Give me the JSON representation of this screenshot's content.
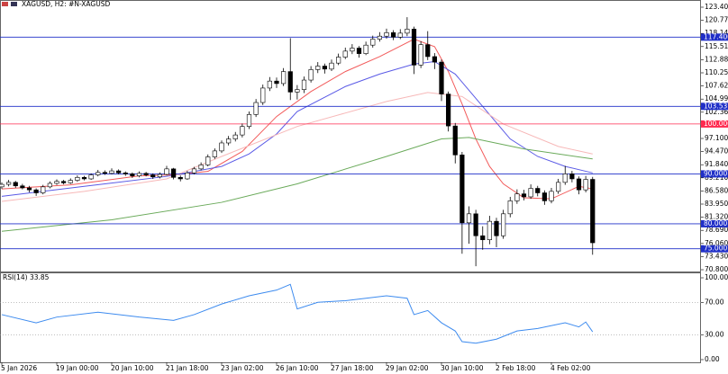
{
  "header": {
    "title": "XAGUSD, H2:  #N-XAGUSD"
  },
  "chart_data": [
    {
      "type": "candlestick",
      "categories": [
        "5 Jan 2026",
        null,
        null,
        null,
        null,
        null,
        null,
        null,
        "19 Jan 00:00",
        null,
        null,
        null,
        null,
        null,
        null,
        null,
        "20 Jan 10:00",
        null,
        null,
        null,
        null,
        null,
        null,
        null,
        "21 Jan 18:00",
        null,
        null,
        null,
        null,
        null,
        null,
        null,
        "23 Jan 02:00",
        null,
        null,
        null,
        null,
        null,
        null,
        null,
        "26 Jan 10:00",
        null,
        null,
        null,
        null,
        null,
        null,
        null,
        "27 Jan 18:00",
        null,
        null,
        null,
        null,
        null,
        null,
        null,
        "29 Jan 02:00",
        null,
        null,
        null,
        null,
        null,
        null,
        null,
        "30 Jan 10:00",
        null,
        null,
        null,
        null,
        null,
        null,
        null,
        "2 Feb 18:00",
        null,
        null,
        null,
        null,
        null,
        null,
        null,
        "4 Feb 02:00",
        null,
        null,
        null,
        null,
        null,
        null
      ],
      "open": [
        87.4,
        87.9,
        88.3,
        87.6,
        87.2,
        86.8,
        86.2,
        87.4,
        88.1,
        88.5,
        88.2,
        88.7,
        89.3,
        89.0,
        89.8,
        90.3,
        90.1,
        90.6,
        90.2,
        90.0,
        89.6,
        90.1,
        89.8,
        89.4,
        89.9,
        91.0,
        89.3,
        89.0,
        90.2,
        91.0,
        91.8,
        93.4,
        94.6,
        96.2,
        97.0,
        97.8,
        99.5,
        101.9,
        104.3,
        107.2,
        108.6,
        108.1,
        110.5,
        106.4,
        106.9,
        108.8,
        110.9,
        111.6,
        111.0,
        112.2,
        113.4,
        114.6,
        115.2,
        114.1,
        115.8,
        117.0,
        117.6,
        118.3,
        117.4,
        118.2,
        119.0,
        111.8,
        115.9,
        113.5,
        112.4,
        106.0,
        99.6,
        93.8,
        80.2,
        82.0,
        77.6,
        76.8,
        80.5,
        77.6,
        82.0,
        84.6,
        86.0,
        85.4,
        87.1,
        86.2,
        84.6,
        86.5,
        88.3,
        90.0,
        89.0,
        86.8,
        88.9
      ],
      "high": [
        88.3,
        88.8,
        88.6,
        88.0,
        87.6,
        87.1,
        87.8,
        88.5,
        88.9,
        88.8,
        89.1,
        89.7,
        89.6,
        90.1,
        90.8,
        90.7,
        91.1,
        90.9,
        90.5,
        90.3,
        90.5,
        90.4,
        90.1,
        90.3,
        91.6,
        91.2,
        89.7,
        90.6,
        91.4,
        92.3,
        93.9,
        95.1,
        96.7,
        97.6,
        98.4,
        100.1,
        102.5,
        105.0,
        107.9,
        109.4,
        109.3,
        111.2,
        117.2,
        107.8,
        109.5,
        111.6,
        112.4,
        112.1,
        112.9,
        114.1,
        115.3,
        116.0,
        115.6,
        116.5,
        117.7,
        118.4,
        119.1,
        118.8,
        119.0,
        121.4,
        119.5,
        116.6,
        118.6,
        114.2,
        112.9,
        106.5,
        100.2,
        94.4,
        83.5,
        82.8,
        79.5,
        81.6,
        81.2,
        82.8,
        85.4,
        86.9,
        86.8,
        87.9,
        87.6,
        86.7,
        87.2,
        89.0,
        91.6,
        90.6,
        89.5,
        89.6,
        89.4
      ],
      "low": [
        87.0,
        87.5,
        87.2,
        86.9,
        86.3,
        85.6,
        85.9,
        87.1,
        87.8,
        87.9,
        88.0,
        88.4,
        88.7,
        88.8,
        89.5,
        89.8,
        89.9,
        89.9,
        89.6,
        89.2,
        89.3,
        89.5,
        89.0,
        89.1,
        89.7,
        88.9,
        88.5,
        88.8,
        89.9,
        90.7,
        91.5,
        93.0,
        94.2,
        95.7,
        96.5,
        97.3,
        99.0,
        101.4,
        103.8,
        106.6,
        107.2,
        107.6,
        104.8,
        104.9,
        106.2,
        108.3,
        110.2,
        110.1,
        110.6,
        111.8,
        113.0,
        114.0,
        113.3,
        113.8,
        115.3,
        116.5,
        117.1,
        116.8,
        117.0,
        117.6,
        110.0,
        111.2,
        112.8,
        111.0,
        104.6,
        98.5,
        92.1,
        74.0,
        76.0,
        71.5,
        74.8,
        75.9,
        75.3,
        77.0,
        81.3,
        84.0,
        84.7,
        85.0,
        85.5,
        83.8,
        84.1,
        86.0,
        87.8,
        88.3,
        85.9,
        86.3,
        73.8
      ],
      "close": [
        87.9,
        88.3,
        87.6,
        87.2,
        86.8,
        86.2,
        87.4,
        88.1,
        88.5,
        88.2,
        88.7,
        89.3,
        89.0,
        89.8,
        90.3,
        90.1,
        90.6,
        90.2,
        90.0,
        89.6,
        90.1,
        89.8,
        89.4,
        89.9,
        91.0,
        89.3,
        89.0,
        90.2,
        91.0,
        91.8,
        93.4,
        94.6,
        96.2,
        97.0,
        97.8,
        99.5,
        101.9,
        104.3,
        107.2,
        108.6,
        108.1,
        110.5,
        106.4,
        106.9,
        108.8,
        110.9,
        111.6,
        111.0,
        112.2,
        113.4,
        114.6,
        115.2,
        114.1,
        115.8,
        117.0,
        117.6,
        118.3,
        117.4,
        118.2,
        119.0,
        111.8,
        115.9,
        113.5,
        112.4,
        106.0,
        99.6,
        93.8,
        80.2,
        82.0,
        77.6,
        76.8,
        80.5,
        77.6,
        82.0,
        84.6,
        86.0,
        85.4,
        87.1,
        86.2,
        84.6,
        86.5,
        88.3,
        90.0,
        89.0,
        86.8,
        88.9,
        76.2
      ],
      "up_color": "#ffffff",
      "down_color": "#000000",
      "ylim": [
        70.8,
        123.4
      ],
      "yticks": [
        {
          "value": 70.8,
          "label": "70.800"
        },
        {
          "value": 73.43,
          "label": "73.430"
        },
        {
          "value": 76.06,
          "label": "76.060"
        },
        {
          "value": 78.69,
          "label": "78.690"
        },
        {
          "value": 81.32,
          "label": "81.320"
        },
        {
          "value": 83.95,
          "label": "83.950"
        },
        {
          "value": 86.58,
          "label": "86.580"
        },
        {
          "value": 89.21,
          "label": "89.210"
        },
        {
          "value": 91.84,
          "label": "91.840"
        },
        {
          "value": 94.47,
          "label": "94.470"
        },
        {
          "value": 97.1,
          "label": "97.100"
        },
        {
          "value": 99.73,
          "label": "99.730"
        },
        {
          "value": 102.36,
          "label": "102.360"
        },
        {
          "value": 104.99,
          "label": "104.990"
        },
        {
          "value": 107.62,
          "label": "107.620"
        },
        {
          "value": 110.25,
          "label": "110.250"
        },
        {
          "value": 112.88,
          "label": "112.880"
        },
        {
          "value": 115.51,
          "label": "115.510"
        },
        {
          "value": 118.14,
          "label": "118.140"
        },
        {
          "value": 120.77,
          "label": "120.770"
        },
        {
          "value": 123.4,
          "label": "123.400"
        }
      ],
      "levels": [
        {
          "value": 117.4,
          "label": "117.400",
          "color": "#1f2fc8"
        },
        {
          "value": 103.531,
          "label": "103.531",
          "color": "#1f2fc8"
        },
        {
          "value": 100,
          "label": "100.000",
          "color": "#ff2a4f"
        },
        {
          "value": 90,
          "label": "90.000",
          "color": "#1f2fc8"
        },
        {
          "value": 80,
          "label": "80.000",
          "color": "#1f2fc8"
        },
        {
          "value": 75,
          "label": "75.000",
          "color": "#1f2fc8"
        }
      ],
      "series": [
        {
          "color": "#f25a5a",
          "x": [
            0,
            10,
            20,
            25,
            30,
            35,
            40,
            45,
            50,
            55,
            60,
            63,
            65,
            67,
            69,
            71,
            73,
            76,
            80,
            84,
            86
          ],
          "values": [
            87.0,
            87.8,
            89.6,
            89.8,
            90.5,
            94.5,
            101.5,
            106.5,
            110.5,
            113.5,
            117.0,
            115.5,
            110.5,
            104.0,
            97.0,
            91.5,
            88.0,
            85.2,
            85.0,
            87.5,
            87.0
          ]
        },
        {
          "color": "#5a5ae6",
          "x": [
            0,
            12,
            24,
            32,
            36,
            40,
            43,
            50,
            55,
            60,
            63,
            66,
            70,
            74,
            78,
            82,
            86
          ],
          "values": [
            85.5,
            87.5,
            89.5,
            91.5,
            94.0,
            98.0,
            102.5,
            107.5,
            110.0,
            112.0,
            112.5,
            110.0,
            103.5,
            97.0,
            93.5,
            91.5,
            90.2
          ]
        },
        {
          "color": "#f7b8b8",
          "x": [
            0,
            12,
            24,
            32,
            43,
            56,
            62,
            67,
            73,
            81,
            86
          ],
          "values": [
            84.5,
            86.5,
            89.0,
            93.5,
            99.5,
            104.5,
            106.3,
            105.5,
            100.0,
            95.5,
            94.0
          ]
        },
        {
          "color": "#6aaa5a",
          "x": [
            0,
            16,
            32,
            43,
            56,
            64,
            68,
            76,
            86
          ],
          "values": [
            78.5,
            80.8,
            84.3,
            88.0,
            93.5,
            97.0,
            97.3,
            95.0,
            93.0
          ]
        }
      ]
    },
    {
      "type": "line",
      "title": "RSI(14) 33.85",
      "color": "#3d8bef",
      "x": [
        0,
        5,
        8,
        14,
        20,
        25,
        28,
        32,
        36,
        40,
        42,
        43,
        46,
        50,
        56,
        59,
        60,
        62,
        64,
        66,
        67,
        69,
        72,
        75,
        78,
        82,
        84,
        85,
        86
      ],
      "values": [
        55,
        45,
        52,
        58,
        52,
        48,
        55,
        68,
        78,
        85,
        92,
        62,
        70,
        72,
        78,
        75,
        55,
        60,
        45,
        35,
        22,
        20,
        25,
        35,
        38,
        45,
        40,
        46,
        34
      ],
      "ylim": [
        0,
        100
      ],
      "yticks": [
        {
          "value": 0,
          "label": "0.00"
        },
        {
          "value": 30,
          "label": "30.00"
        },
        {
          "value": 70,
          "label": "70.00"
        },
        {
          "value": 100,
          "label": "100.00"
        }
      ]
    }
  ]
}
